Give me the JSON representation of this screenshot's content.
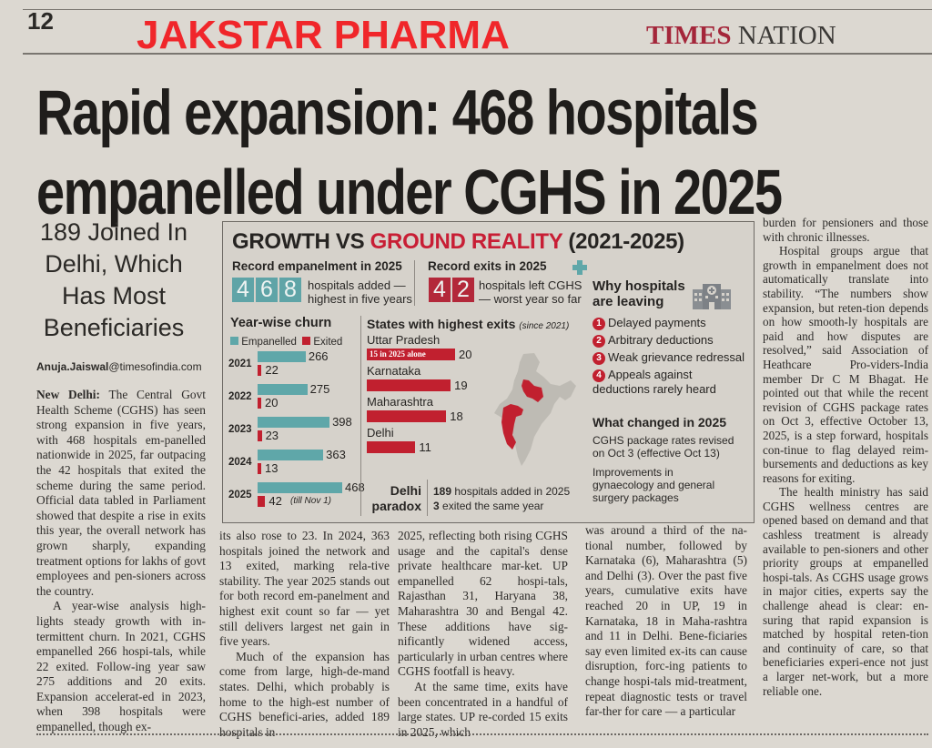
{
  "masthead": {
    "page_number": "12",
    "brand_overlay": "JAKSTAR PHARMA",
    "section_times": "TIMES",
    "section_nation": "NATION"
  },
  "headline": {
    "line1": "Rapid expansion: 468 hospitals",
    "line2": "empanelled under CGHS in 2025"
  },
  "subhead": {
    "lines": [
      "189 Joined In",
      "Delhi, Which",
      "Has Most",
      "Beneficiaries"
    ]
  },
  "byline": {
    "name": "Anuja.Jaiswal",
    "domain": "@timesofindia.com"
  },
  "infographic": {
    "title_dark": "GROWTH VS ",
    "title_red": "GROUND REALITY",
    "title_years": " (2021-2025)",
    "record_empanelment": {
      "heading": "Record empanelment in 2025",
      "digits": [
        "4",
        "6",
        "8"
      ],
      "line1": "hospitals added —",
      "line2": "highest in five years"
    },
    "record_exits": {
      "heading": "Record exits in 2025",
      "digits": [
        "4",
        "2"
      ],
      "line1": "hospitals left CGHS",
      "line2": "— worst year so far"
    },
    "why_leaving": {
      "heading_line1": "Why hospitals",
      "heading_line2": "are leaving",
      "icon": "hospital-building-icon",
      "reasons": [
        {
          "n": "1",
          "text": "Delayed payments"
        },
        {
          "n": "2",
          "text": "Arbitrary deductions"
        },
        {
          "n": "3",
          "text": "Weak grievance redressal"
        },
        {
          "n": "4",
          "text": "Appeals against",
          "text2": "deductions rarely heard"
        }
      ]
    },
    "what_changed": {
      "heading": "What changed in 2025",
      "item1_line1": "CGHS package rates revised",
      "item1_line2": "on Oct 3 (effective Oct 13)",
      "item2_line1": "Improvements in",
      "item2_line2": "gynaecology and general",
      "item2_line3": "surgery packages"
    },
    "delhi_paradox": {
      "label_line1": "Delhi",
      "label_line2": "paradox",
      "stat1_num": "189",
      "stat1_text": " hospitals added in 2025",
      "stat2_num": "3",
      "stat2_text": " exited the same year"
    },
    "colors": {
      "teal": "#5fa7a9",
      "red": "#c1202f",
      "brand_red": "#f0262a"
    }
  },
  "chart_data": [
    {
      "type": "bar",
      "title": "Year-wise churn",
      "orientation": "horizontal",
      "categories": [
        "2021",
        "2022",
        "2023",
        "2024",
        "2025"
      ],
      "series": [
        {
          "name": "Empanelled",
          "color": "#5fa7a9",
          "values": [
            266,
            275,
            398,
            363,
            468
          ]
        },
        {
          "name": "Exited",
          "color": "#c1202f",
          "values": [
            22,
            20,
            23,
            13,
            42
          ]
        }
      ],
      "annotations": [
        {
          "category": "2025",
          "series": "Exited",
          "text": "(till Nov 1)"
        }
      ],
      "legend": "top-left",
      "xlim": [
        0,
        468
      ]
    },
    {
      "type": "bar",
      "title": "States with highest exits",
      "subtitle": "(since 2021)",
      "orientation": "horizontal",
      "categories": [
        "Uttar Pradesh",
        "Karnataka",
        "Maharashtra",
        "Delhi"
      ],
      "values": [
        20,
        19,
        18,
        11
      ],
      "annotations": [
        {
          "category": "Uttar Pradesh",
          "text": "15 in 2025 alone"
        }
      ],
      "xlim": [
        0,
        20
      ],
      "map_highlighted_regions": [
        "Uttar Pradesh",
        "Karnataka",
        "Maharashtra"
      ]
    }
  ],
  "article": {
    "col1": [
      {
        "lead": "New Delhi:",
        "text": " The Central Govt Health Scheme (CGHS) has seen strong expansion in five years, with 468 hospitals em-panelled nationwide in 2025, far outpacing the 42 hospitals that exited the scheme during the same period. Official data tabled in Parliament showed that despite a rise in exits this year, the overall network has grown sharply, expanding treatment options for lakhs of govt employees and pen-sioners across the country."
      },
      {
        "text": "A year-wise analysis high-lights steady growth with in-termittent churn. In 2021, CGHS empanelled 266 hospi-tals, while 22 exited. Follow-ing year saw 275 additions and 20 exits. Expansion accelerat-ed in 2023, when 398 hospitals were empanelled, though ex-"
      }
    ],
    "col2": [
      {
        "text": "its also rose to 23. In 2024, 363 hospitals joined the network and 13 exited, marking rela-tive stability. The year 2025 stands out for both record em-panelment and highest exit count so far — yet still delivers largest net gain in five years."
      },
      {
        "text": "Much of the expansion has come from large, high-de-mand states. Delhi, which probably is home to the high-est number of CGHS benefici-aries, added 189 hospitals in"
      }
    ],
    "col3": [
      {
        "text": "2025, reflecting both rising CGHS usage and the capital's dense private healthcare mar-ket. UP empanelled 62 hospi-tals, Rajasthan 31, Haryana 38, Maharashtra 30 and Bengal 42. These additions have sig-nificantly widened access, particularly in urban centres where CGHS footfall is heavy."
      },
      {
        "text": "At the same time, exits have been concentrated in a handful of large states. UP re-corded 15 exits in 2025, which"
      }
    ],
    "col4": [
      {
        "text": "was around a third of the na-tional number, followed by Karnataka (6), Maharashtra (5) and Delhi (3). Over the past five years, cumulative exits have reached 20 in UP, 19 in Karnataka, 18 in Maha-rashtra and 11 in Delhi. Bene-ficiaries say even limited ex-its can cause disruption, forc-ing patients to change hospi-tals mid-treatment, repeat diagnostic tests or travel far-ther for care — a particular"
      }
    ],
    "col5": [
      {
        "text": "burden for pensioners and those with chronic illnesses."
      },
      {
        "text": "Hospital groups argue that growth in empanelment does not automatically translate into stability. “The numbers show expansion, but reten-tion depends on how smooth-ly hospitals are paid and how disputes are resolved,” said Association of Heathcare Pro-viders-India member Dr C M Bhagat. He pointed out that while the recent revision of CGHS package rates on Oct 3, effective October 13, 2025, is a step forward, hospitals con-tinue to flag delayed reim-bursements and deductions as key reasons for exiting."
      },
      {
        "text": "The health ministry has said CGHS wellness centres are opened based on demand and that cashless treatment is already available to pen-sioners and other priority groups at empanelled hospi-tals. As CGHS usage grows in major cities, experts say the challenge ahead is clear: en-suring that rapid expansion is matched by hospital reten-tion and continuity of care, so that beneficiaries experi-ence not just a larger net-work, but a more reliable one."
      }
    ]
  }
}
